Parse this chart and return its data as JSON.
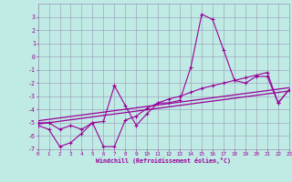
{
  "xlabel": "Windchill (Refroidissement éolien,°C)",
  "bg_color": "#c0eae4",
  "grid_color": "#9898b8",
  "line_color": "#990099",
  "xlim": [
    0,
    23
  ],
  "ylim": [
    -7,
    4
  ],
  "xticks": [
    0,
    1,
    2,
    3,
    4,
    5,
    6,
    7,
    8,
    9,
    10,
    11,
    12,
    13,
    14,
    15,
    16,
    17,
    18,
    19,
    20,
    21,
    22,
    23
  ],
  "yticks": [
    -7,
    -6,
    -5,
    -4,
    -3,
    -2,
    -1,
    0,
    1,
    2,
    3
  ],
  "line1_x": [
    0,
    1,
    2,
    3,
    4,
    5,
    6,
    7,
    7,
    8,
    9,
    10,
    11,
    12,
    13,
    14,
    15,
    16,
    17,
    18,
    19,
    20,
    21,
    22,
    23
  ],
  "line1_y": [
    -5.0,
    -5.0,
    -5.5,
    -5.2,
    -5.5,
    -5.0,
    -4.9,
    -2.2,
    -2.2,
    -3.7,
    -5.2,
    -4.3,
    -3.5,
    -3.5,
    -3.3,
    -0.8,
    3.2,
    2.8,
    0.5,
    -1.8,
    -2.0,
    -1.5,
    -1.5,
    -3.5,
    -2.5
  ],
  "line2_x": [
    0,
    1,
    2,
    3,
    4,
    5,
    6,
    7,
    8,
    9,
    10,
    11,
    12,
    13,
    14,
    15,
    16,
    17,
    18,
    19,
    20,
    21,
    22,
    23
  ],
  "line2_y": [
    -5.2,
    -5.5,
    -6.8,
    -6.5,
    -5.8,
    -5.0,
    -6.8,
    -6.8,
    -4.8,
    -4.5,
    -3.9,
    -3.5,
    -3.2,
    -3.0,
    -2.7,
    -2.4,
    -2.2,
    -2.0,
    -1.8,
    -1.6,
    -1.4,
    -1.2,
    -3.5,
    -2.5
  ],
  "trend1_x": [
    0,
    23
  ],
  "trend1_y": [
    -5.1,
    -2.6
  ],
  "trend2_x": [
    0,
    23
  ],
  "trend2_y": [
    -4.85,
    -2.35
  ]
}
